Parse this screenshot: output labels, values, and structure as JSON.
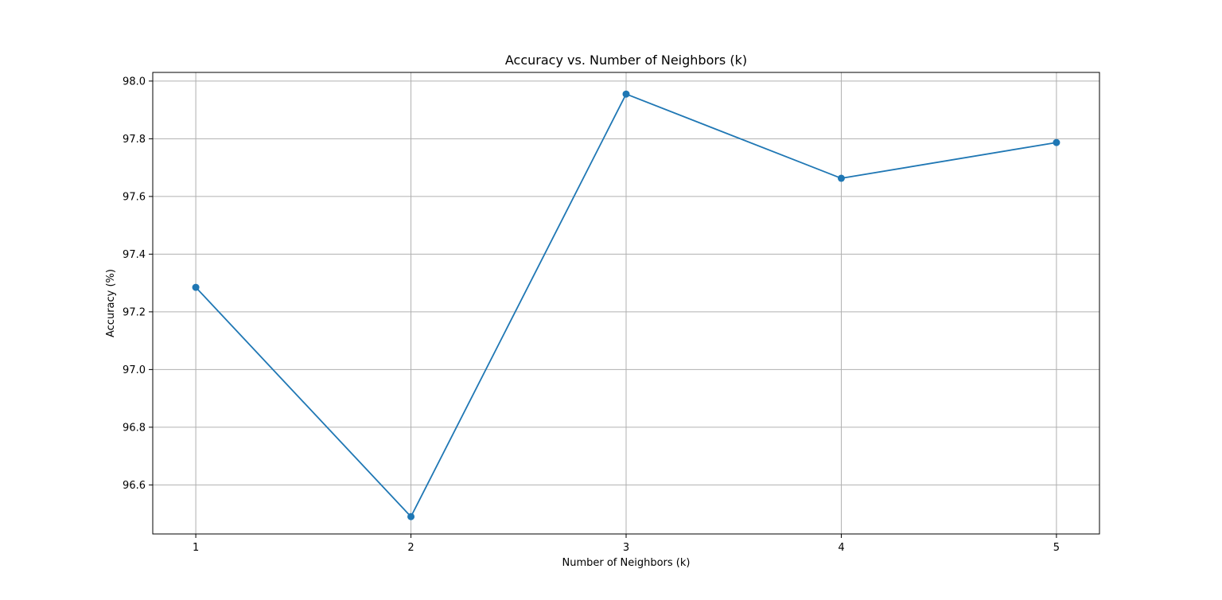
{
  "chart_data": {
    "type": "line",
    "title": "Accuracy vs. Number of Neighbors (k)",
    "xlabel": "Number of Neighbors (k)",
    "ylabel": "Accuracy (%)",
    "x": [
      1,
      2,
      3,
      4,
      5
    ],
    "x_ticks": [
      "1",
      "2",
      "3",
      "4",
      "5"
    ],
    "xlim": [
      0.8,
      5.2
    ],
    "y_ticks": [
      "96.6",
      "96.8",
      "97.0",
      "97.2",
      "97.4",
      "97.6",
      "97.8",
      "98.0"
    ],
    "ylim": [
      96.43,
      98.03
    ],
    "grid": true,
    "series": [
      {
        "color": "#1f77b4",
        "marker": "circle",
        "values": [
          97.285,
          96.49,
          97.955,
          97.663,
          97.787
        ]
      }
    ]
  }
}
